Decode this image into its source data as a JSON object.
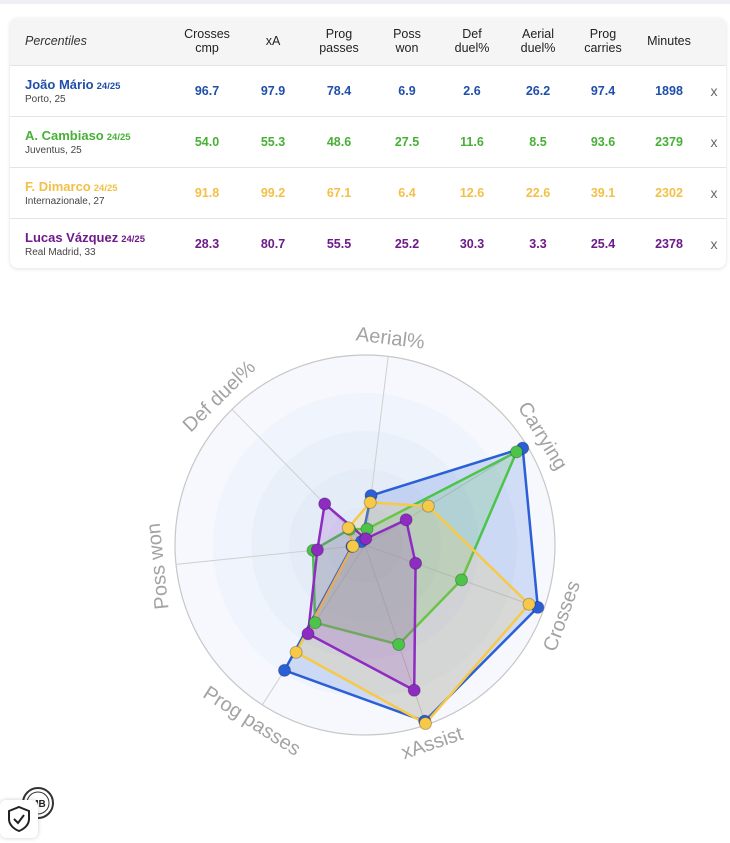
{
  "table": {
    "header_label": "Percentiles",
    "columns": [
      {
        "line1": "Crosses",
        "line2": "cmp"
      },
      {
        "line1": "xA",
        "line2": ""
      },
      {
        "line1": "Prog",
        "line2": "passes"
      },
      {
        "line1": "Poss",
        "line2": "won"
      },
      {
        "line1": "Def",
        "line2": "duel%"
      },
      {
        "line1": "Aerial",
        "line2": "duel%"
      },
      {
        "line1": "Prog",
        "line2": "carries"
      },
      {
        "line1": "Minutes",
        "line2": ""
      }
    ],
    "remove_label": "x",
    "rows": [
      {
        "name": "João Mário",
        "season": "24/25",
        "club": "Porto, 25",
        "color": "#1f4fa8",
        "values": [
          "96.7",
          "97.9",
          "78.4",
          "6.9",
          "2.6",
          "26.2",
          "97.4",
          "1898"
        ]
      },
      {
        "name": "A. Cambiaso",
        "season": "24/25",
        "club": "Juventus, 25",
        "color": "#47b036",
        "values": [
          "54.0",
          "55.3",
          "48.6",
          "27.5",
          "11.6",
          "8.5",
          "93.6",
          "2379"
        ]
      },
      {
        "name": "F. Dimarco",
        "season": "24/25",
        "club": "Internazionale, 27",
        "color": "#f2c046",
        "values": [
          "91.8",
          "99.2",
          "67.1",
          "6.4",
          "12.6",
          "22.6",
          "39.1",
          "2302"
        ]
      },
      {
        "name": "Lucas Vázquez",
        "season": "24/25",
        "club": "Real Madrid, 33",
        "color": "#6e1a8a",
        "values": [
          "28.3",
          "80.7",
          "55.5",
          "25.2",
          "30.3",
          "3.3",
          "25.4",
          "2378"
        ]
      }
    ]
  },
  "chart_data": {
    "type": "radar",
    "axes": [
      "Aerial%",
      "Carrying",
      "Crosses",
      "xAssist",
      "Prog passes",
      "Poss won",
      "Def duel%"
    ],
    "range": [
      0,
      100
    ],
    "grid": true,
    "series": [
      {
        "name": "João Mário",
        "color": "#2a5fd6",
        "values": [
          26.2,
          97.4,
          96.7,
          97.9,
          78.4,
          6.9,
          2.6
        ]
      },
      {
        "name": "A. Cambiaso",
        "color": "#4cc44a",
        "values": [
          8.5,
          93.6,
          54.0,
          55.3,
          48.6,
          27.5,
          11.6
        ]
      },
      {
        "name": "F. Dimarco",
        "color": "#f7c948",
        "values": [
          22.6,
          39.1,
          91.8,
          99.2,
          67.1,
          6.4,
          12.6
        ]
      },
      {
        "name": "Lucas Vázquez",
        "color": "#8e2bc2",
        "values": [
          3.3,
          25.4,
          28.3,
          80.7,
          55.5,
          25.2,
          30.3
        ]
      }
    ]
  },
  "branding": {
    "logo_text": "MB"
  }
}
